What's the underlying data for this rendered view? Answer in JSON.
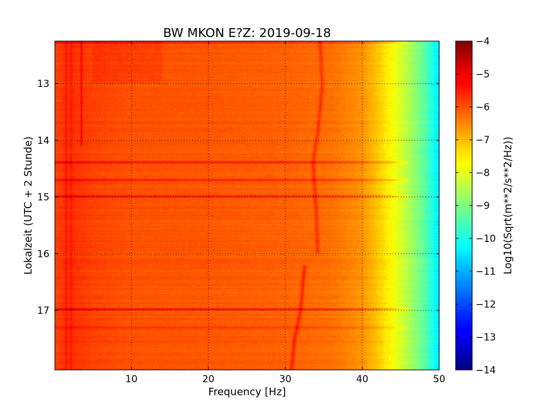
{
  "chart_data": {
    "type": "heatmap",
    "title": "BW MKON E?Z: 2019-09-18",
    "xlabel": "Frequency [Hz]",
    "ylabel": "Lokalzeit (UTC + 2 Stunde)",
    "xlim": [
      0.05,
      50
    ],
    "ylim": [
      12.25,
      18.05
    ],
    "y_inverted": true,
    "xticks": [
      10,
      20,
      30,
      40,
      50
    ],
    "xtick_labels": [
      "10",
      "20",
      "30",
      "40",
      "50"
    ],
    "yticks": [
      13,
      14,
      15,
      16,
      17
    ],
    "ytick_labels": [
      "13",
      "14",
      "15",
      "16",
      "17"
    ],
    "grid": true,
    "colormap": "jet",
    "colorbar": {
      "label": "Log10(Sqrt(m**2/s**2/Hz))",
      "range": [
        -14,
        -4
      ],
      "ticks": [
        -4,
        -5,
        -6,
        -7,
        -8,
        -9,
        -10,
        -11,
        -12,
        -13,
        -14
      ],
      "tick_labels": [
        "−4",
        "−5",
        "−6",
        "−7",
        "−8",
        "−9",
        "−10",
        "−11",
        "−12",
        "−13",
        "−14"
      ]
    },
    "spectrum_profile": [
      {
        "f": 0.05,
        "v": -5.9
      },
      {
        "f": 2,
        "v": -5.7
      },
      {
        "f": 5,
        "v": -5.9
      },
      {
        "f": 10,
        "v": -6.05
      },
      {
        "f": 20,
        "v": -6.1
      },
      {
        "f": 30,
        "v": -6.2
      },
      {
        "f": 36,
        "v": -6.35
      },
      {
        "f": 40,
        "v": -6.7
      },
      {
        "f": 42,
        "v": -7.2
      },
      {
        "f": 44,
        "v": -7.8
      },
      {
        "f": 46,
        "v": -8.5
      },
      {
        "f": 48,
        "v": -9.3
      },
      {
        "f": 50,
        "v": -10.5
      }
    ],
    "horizontal_bands": [
      {
        "time": 14.39,
        "delta": 0.8
      },
      {
        "time": 14.7,
        "delta": 0.7
      },
      {
        "time": 14.99,
        "delta": 0.6
      },
      {
        "time": 16.98,
        "delta": 0.9
      },
      {
        "time": 12.27,
        "delta": 0.6
      },
      {
        "time": 17.3,
        "delta": 0.4
      }
    ],
    "drift_lines": [
      {
        "points": [
          [
            34.5,
            12.25
          ],
          [
            34.8,
            13.0
          ],
          [
            34.3,
            13.8
          ],
          [
            33.6,
            14.4
          ],
          [
            34.0,
            15.2
          ],
          [
            34.2,
            16.0
          ]
        ],
        "delta": 0.6
      },
      {
        "points": [
          [
            32.5,
            16.2
          ],
          [
            32.0,
            17.0
          ],
          [
            31.2,
            17.5
          ],
          [
            30.8,
            18.05
          ]
        ],
        "delta": 0.7
      }
    ],
    "vertical_lines": [
      {
        "f": 1.5,
        "delta": 0.4
      },
      {
        "f": 2.2,
        "delta": 0.3
      },
      {
        "f": 3.5,
        "from": 12.25,
        "to": 14.1,
        "delta": 0.7
      }
    ]
  }
}
